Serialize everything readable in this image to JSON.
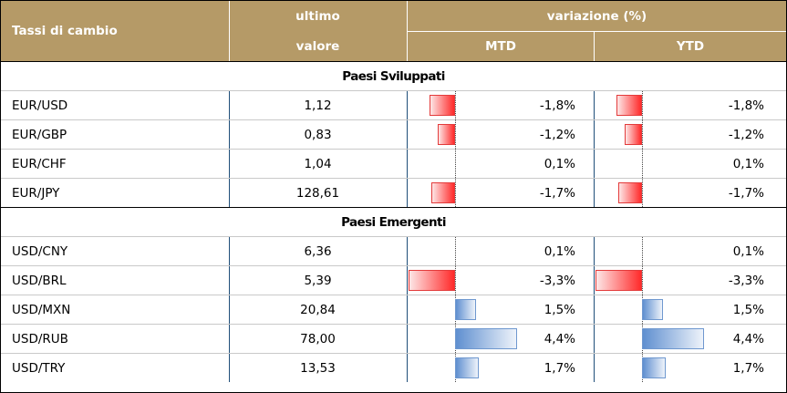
{
  "header": {
    "col1": "Tassi di cambio",
    "col2_line1": "ultimo",
    "col2_line2": "valore",
    "group": "variazione (%)",
    "mtd": "MTD",
    "ytd": "YTD"
  },
  "sections": [
    {
      "title": "Paesi Sviluppati",
      "rows": [
        {
          "name": "EUR/USD",
          "value": "1,12",
          "mtd": "-1,8%",
          "ytd": "-1,8%",
          "mtd_num": -1.8,
          "ytd_num": -1.8
        },
        {
          "name": "EUR/GBP",
          "value": "0,83",
          "mtd": "-1,2%",
          "ytd": "-1,2%",
          "mtd_num": -1.2,
          "ytd_num": -1.2
        },
        {
          "name": "EUR/CHF",
          "value": "1,04",
          "mtd": "0,1%",
          "ytd": "0,1%",
          "mtd_num": 0.1,
          "ytd_num": 0.1
        },
        {
          "name": "EUR/JPY",
          "value": "128,61",
          "mtd": "-1,7%",
          "ytd": "-1,7%",
          "mtd_num": -1.7,
          "ytd_num": -1.7
        }
      ]
    },
    {
      "title": "Paesi Emergenti",
      "rows": [
        {
          "name": "USD/CNY",
          "value": "6,36",
          "mtd": "0,1%",
          "ytd": "0,1%",
          "mtd_num": 0.1,
          "ytd_num": 0.1
        },
        {
          "name": "USD/BRL",
          "value": "5,39",
          "mtd": "-3,3%",
          "ytd": "-3,3%",
          "mtd_num": -3.3,
          "ytd_num": -3.3
        },
        {
          "name": "USD/MXN",
          "value": "20,84",
          "mtd": "1,5%",
          "ytd": "1,5%",
          "mtd_num": 1.5,
          "ytd_num": 1.5
        },
        {
          "name": "USD/RUB",
          "value": "78,00",
          "mtd": "4,4%",
          "ytd": "4,4%",
          "mtd_num": 4.4,
          "ytd_num": 4.4
        },
        {
          "name": "USD/TRY",
          "value": "13,53",
          "mtd": "1,7%",
          "ytd": "1,7%",
          "mtd_num": 1.7,
          "ytd_num": 1.7
        }
      ]
    }
  ],
  "colors": {
    "header_bg": "#b59a67",
    "negative_bar": "#ff2a2a",
    "positive_bar": "#5f8fd0"
  }
}
